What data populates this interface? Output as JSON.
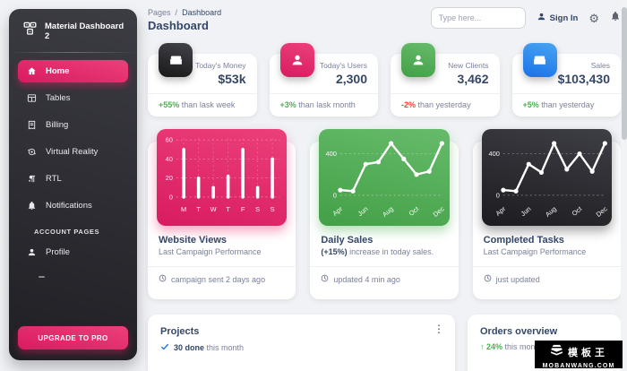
{
  "theme": {
    "page_bg": "#f0f2f5",
    "accent_pink": "#E91E63",
    "pink_gradient": [
      "#EC407A",
      "#D81B60"
    ],
    "green_gradient": [
      "#66BB6A",
      "#43A047"
    ],
    "blue_gradient": [
      "#49a3f1",
      "#1A73E8"
    ],
    "dark_gradient": [
      "#42424a",
      "#191919"
    ],
    "heading": "#344767",
    "muted": "#7b809a",
    "success": "#4CAF50",
    "danger": "#F44336"
  },
  "sidebar": {
    "brand": "Material Dashboard 2",
    "items": [
      {
        "label": "Home",
        "icon": "home-icon",
        "active": true
      },
      {
        "label": "Tables",
        "icon": "table-icon",
        "active": false
      },
      {
        "label": "Billing",
        "icon": "receipt-icon",
        "active": false
      },
      {
        "label": "Virtual Reality",
        "icon": "vr-icon",
        "active": false
      },
      {
        "label": "RTL",
        "icon": "rtl-icon",
        "active": false
      },
      {
        "label": "Notifications",
        "icon": "bell-icon",
        "active": false
      }
    ],
    "section_label": "ACCOUNT PAGES",
    "account_items": [
      {
        "label": "Profile",
        "icon": "person-icon"
      }
    ],
    "upgrade_label": "UPGRADE TO PRO"
  },
  "header": {
    "breadcrumb_root": "Pages",
    "breadcrumb_sep": "/",
    "breadcrumb_current": "Dashboard",
    "title": "Dashboard",
    "search_placeholder": "Type here...",
    "sign_in_label": "Sign In",
    "gear_glyph": "⚙"
  },
  "stats": [
    {
      "label": "Today's Money",
      "value": "$53k",
      "delta": "+55%",
      "delta_dir": "up",
      "rest": "than lask week"
    },
    {
      "label": "Today's Users",
      "value": "2,300",
      "delta": "+3%",
      "delta_dir": "up",
      "rest": "than lask month"
    },
    {
      "label": "New Clients",
      "value": "3,462",
      "delta": "-2%",
      "delta_dir": "down",
      "rest": "than yesterday"
    },
    {
      "label": "Sales",
      "value": "$103,430",
      "delta": "+5%",
      "delta_dir": "up",
      "rest": "than yesterday"
    }
  ],
  "chart_cards": [
    {
      "title": "Website Views",
      "sub_bold": "",
      "subtitle": "Last Campaign Performance",
      "footer": "campaign sent 2 days ago"
    },
    {
      "title": "Daily Sales",
      "sub_bold": "(+15%)",
      "subtitle": " increase in today sales.",
      "footer": "updated 4 min ago"
    },
    {
      "title": "Completed Tasks",
      "sub_bold": "",
      "subtitle": "Last Campaign Performance",
      "footer": "just updated"
    }
  ],
  "chart_data": [
    {
      "type": "bar",
      "title": "Website Views",
      "categories": [
        "M",
        "T",
        "W",
        "T",
        "F",
        "S",
        "S"
      ],
      "values": [
        50,
        20,
        10,
        22,
        50,
        10,
        40
      ],
      "ylim": [
        0,
        60
      ],
      "yticks": [
        0,
        20,
        40,
        60
      ],
      "grid": "dashed-white",
      "legend_position": "none"
    },
    {
      "type": "line",
      "title": "Daily Sales",
      "x": [
        "Apr",
        "May",
        "Jun",
        "Jul",
        "Aug",
        "Sep",
        "Oct",
        "Nov",
        "Dec"
      ],
      "values": [
        50,
        40,
        300,
        320,
        500,
        350,
        200,
        230,
        500
      ],
      "ylim": [
        0,
        550
      ],
      "yticks": [
        0,
        400
      ],
      "xtick_indices": [
        0,
        2,
        4,
        6,
        8
      ],
      "grid": "dashed-white",
      "legend_position": "none"
    },
    {
      "type": "line",
      "title": "Completed Tasks",
      "x": [
        "Apr",
        "May",
        "Jun",
        "Jul",
        "Aug",
        "Sep",
        "Oct",
        "Nov",
        "Dec"
      ],
      "values": [
        50,
        40,
        300,
        220,
        500,
        250,
        400,
        230,
        500
      ],
      "ylim": [
        0,
        550
      ],
      "yticks": [
        0,
        400
      ],
      "xtick_indices": [
        0,
        2,
        4,
        6,
        8
      ],
      "grid": "dashed-white",
      "legend_position": "none"
    }
  ],
  "projects": {
    "title": "Projects",
    "done_bold": "30 done",
    "rest": "this month",
    "menu_glyph": "⋮"
  },
  "orders": {
    "title": "Orders overview",
    "arrow": "↑",
    "delta": "24%",
    "rest": "this month"
  },
  "watermark": {
    "cn": "模板王",
    "url": "MOBANWANG.COM"
  }
}
